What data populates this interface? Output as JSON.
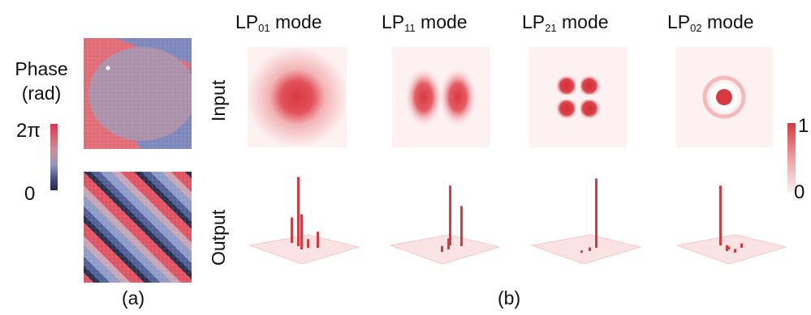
{
  "panel_a": {
    "phase_label_line1": "Phase",
    "phase_label_line2": "(rad)",
    "scale_max": "2π",
    "scale_min": "0",
    "label": "(a)"
  },
  "panel_b": {
    "label": "(b)",
    "row_input": "Input",
    "row_output": "Output",
    "intensity_max": "1",
    "intensity_min": "0",
    "modes": [
      {
        "base": "LP",
        "sub": "01",
        "suffix": " mode",
        "pattern": "gaussian-spot",
        "output_bars": [
          0.35,
          0.95,
          0.48,
          0.12,
          0.22
        ]
      },
      {
        "base": "LP",
        "sub": "11",
        "suffix": " mode",
        "pattern": "two-lobe",
        "output_bars": [
          0.08,
          0.15,
          0.82,
          0.55
        ]
      },
      {
        "base": "LP",
        "sub": "21",
        "suffix": " mode",
        "pattern": "four-lobe",
        "output_bars": [
          0.03,
          0.05,
          0.95
        ]
      },
      {
        "base": "LP",
        "sub": "02",
        "suffix": " mode",
        "pattern": "ring-center",
        "output_bars": [
          0.82,
          0.08,
          0.05,
          0.06,
          0.04
        ]
      }
    ]
  },
  "colors": {
    "mode_red": "#d8383f",
    "phase_red": "#e05a66",
    "phase_blue": "#6f7fb3",
    "phase_dark": "#242c4c",
    "plane_fill": "#fbe3e3"
  }
}
